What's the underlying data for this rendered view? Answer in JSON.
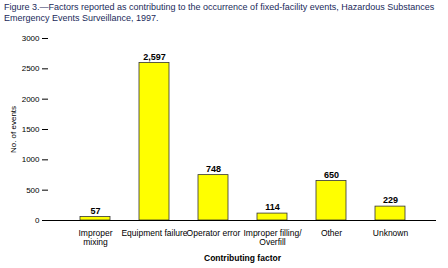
{
  "chart_data": {
    "type": "bar",
    "title": "Figure 3.—Factors reported as contributing to the occurrence of fixed-facility events, Hazardous Substances Emergency Events Surveillance, 1997.",
    "xlabel": "Contributing factor",
    "ylabel": "No. of events",
    "categories": [
      "Improper mixing",
      "Equipment failure",
      "Operator error",
      "Improper filling/ Overfill",
      "Other",
      "Unknown"
    ],
    "values": [
      57,
      2597,
      748,
      114,
      650,
      229
    ],
    "value_labels": [
      "57",
      "2,597",
      "748",
      "114",
      "650",
      "229"
    ],
    "color": "#ffff00",
    "ylim": [
      0,
      3000
    ],
    "yticks": [
      0,
      500,
      1000,
      1500,
      2000,
      2500,
      3000
    ],
    "grid": false,
    "data_labels": true
  }
}
